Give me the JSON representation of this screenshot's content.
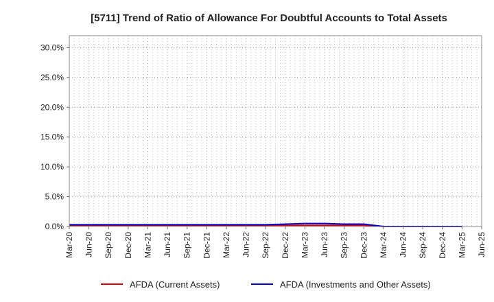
{
  "chart_data": {
    "type": "line",
    "title": "[5711]  Trend of Ratio of Allowance For Doubtful Accounts to Total Assets",
    "xlabel": "",
    "ylabel": "",
    "x": [
      "Mar-20",
      "Jun-20",
      "Sep-20",
      "Dec-20",
      "Mar-21",
      "Jun-21",
      "Sep-21",
      "Dec-21",
      "Mar-22",
      "Jun-22",
      "Sep-22",
      "Dec-22",
      "Mar-23",
      "Jun-23",
      "Sep-23",
      "Dec-23",
      "Mar-24",
      "Jun-24",
      "Sep-24",
      "Dec-24",
      "Mar-25",
      "Jun-25"
    ],
    "ylim": [
      0,
      0.32
    ],
    "yticks": [
      0,
      0.05,
      0.1,
      0.15,
      0.2,
      0.25,
      0.3
    ],
    "ytick_labels": [
      "0.0%",
      "5.0%",
      "10.0%",
      "15.0%",
      "20.0%",
      "25.0%",
      "30.0%"
    ],
    "grid": true,
    "legend_position": "bottom",
    "series": [
      {
        "name": "AFDA (Current Assets)",
        "color": "#dd0000",
        "values": [
          0.002,
          0.002,
          0.002,
          0.002,
          0.002,
          0.002,
          0.002,
          0.002,
          0.002,
          0.002,
          0.002,
          0.002,
          0.002,
          0.002,
          0.002,
          0.002,
          0.0,
          0.0,
          0.0,
          0.0,
          0.0,
          null
        ]
      },
      {
        "name": "AFDA (Investments and Other Assets)",
        "color": "#0000cc",
        "values": [
          0.003,
          0.003,
          0.003,
          0.003,
          0.003,
          0.003,
          0.003,
          0.003,
          0.003,
          0.003,
          0.003,
          0.004,
          0.005,
          0.005,
          0.004,
          0.004,
          0.0,
          0.0,
          0.0,
          0.0,
          0.0,
          null
        ]
      }
    ]
  }
}
